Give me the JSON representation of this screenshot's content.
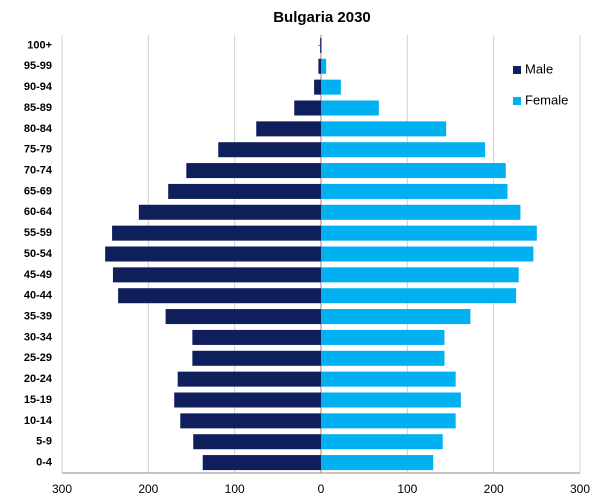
{
  "chart_data": {
    "type": "pyramid",
    "title": "Bulgaria 2030",
    "categories": [
      "0-4",
      "5-9",
      "10-14",
      "15-19",
      "20-24",
      "25-29",
      "30-34",
      "35-39",
      "40-44",
      "45-49",
      "50-54",
      "55-59",
      "60-64",
      "65-69",
      "70-74",
      "75-79",
      "80-84",
      "85-89",
      "90-94",
      "95-99",
      "100+"
    ],
    "series": [
      {
        "name": "Male",
        "color": "#0f1f5c",
        "values": [
          -137,
          -148,
          -163,
          -170,
          -166,
          -149,
          -149,
          -180,
          -235,
          -241,
          -250,
          -242,
          -211,
          -177,
          -156,
          -119,
          -75,
          -31,
          -8,
          -3,
          -1
        ]
      },
      {
        "name": "Female",
        "color": "#00b0f0",
        "values": [
          130,
          141,
          156,
          162,
          156,
          143,
          143,
          173,
          226,
          229,
          246,
          250,
          231,
          216,
          214,
          190,
          145,
          67,
          23,
          6,
          1
        ]
      }
    ],
    "xlim": [
      -300,
      300
    ],
    "xticks": [
      {
        "value": -300,
        "label": "300"
      },
      {
        "value": -200,
        "label": "200"
      },
      {
        "value": -100,
        "label": "100"
      },
      0,
      100,
      200,
      300
    ],
    "grid": true,
    "legend": "upper right"
  }
}
